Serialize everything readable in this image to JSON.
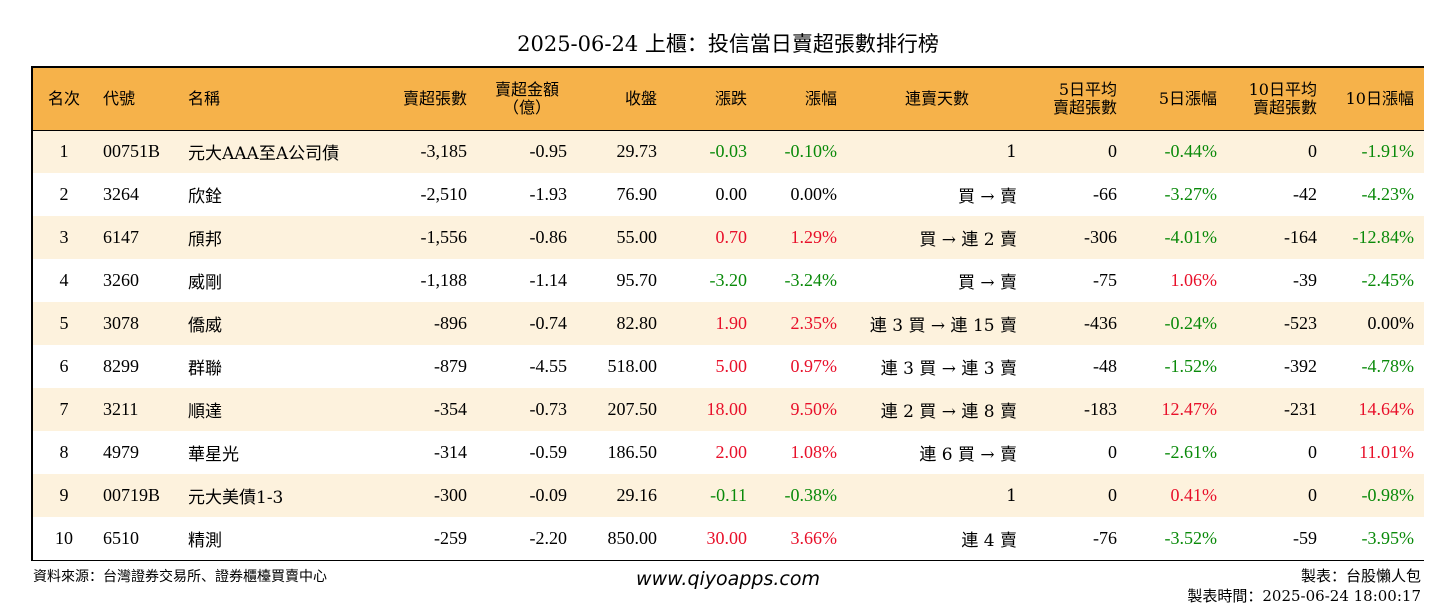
{
  "title": "2025-06-24 上櫃：投信當日賣超張數排行榜",
  "headers": {
    "rank": "名次",
    "code": "代號",
    "name": "名稱",
    "sell_shares": "賣超張數",
    "sell_amount_line1": "賣超金額",
    "sell_amount_line2": "（億）",
    "close": "收盤",
    "change": "漲跌",
    "change_pct": "漲幅",
    "streak": "連賣天數",
    "avg5_line1": "5日平均",
    "avg5_line2": "賣超張數",
    "chg5": "5日漲幅",
    "avg10_line1": "10日平均",
    "avg10_line2": "賣超張數",
    "chg10": "10日漲幅"
  },
  "rows": [
    {
      "rank": "1",
      "code": "00751B",
      "name": "元大AAA至A公司債",
      "sell_shares": "-3,185",
      "sell_amount": "-0.95",
      "close": "29.73",
      "change": "-0.03",
      "change_color": "green",
      "change_pct": "-0.10%",
      "streak": "1",
      "avg5": "0",
      "chg5": "-0.44%",
      "chg5_color": "green",
      "avg10": "0",
      "chg10": "-1.91%",
      "chg10_color": "green"
    },
    {
      "rank": "2",
      "code": "3264",
      "name": "欣銓",
      "sell_shares": "-2,510",
      "sell_amount": "-1.93",
      "close": "76.90",
      "change": "0.00",
      "change_color": "black",
      "change_pct": "0.00%",
      "streak": "買 → 賣",
      "avg5": "-66",
      "chg5": "-3.27%",
      "chg5_color": "green",
      "avg10": "-42",
      "chg10": "-4.23%",
      "chg10_color": "green"
    },
    {
      "rank": "3",
      "code": "6147",
      "name": "頎邦",
      "sell_shares": "-1,556",
      "sell_amount": "-0.86",
      "close": "55.00",
      "change": "0.70",
      "change_color": "red",
      "change_pct": "1.29%",
      "streak": "買 → 連 2 賣",
      "avg5": "-306",
      "chg5": "-4.01%",
      "chg5_color": "green",
      "avg10": "-164",
      "chg10": "-12.84%",
      "chg10_color": "green"
    },
    {
      "rank": "4",
      "code": "3260",
      "name": "威剛",
      "sell_shares": "-1,188",
      "sell_amount": "-1.14",
      "close": "95.70",
      "change": "-3.20",
      "change_color": "green",
      "change_pct": "-3.24%",
      "streak": "買 → 賣",
      "avg5": "-75",
      "chg5": "1.06%",
      "chg5_color": "red",
      "avg10": "-39",
      "chg10": "-2.45%",
      "chg10_color": "green"
    },
    {
      "rank": "5",
      "code": "3078",
      "name": "僑威",
      "sell_shares": "-896",
      "sell_amount": "-0.74",
      "close": "82.80",
      "change": "1.90",
      "change_color": "red",
      "change_pct": "2.35%",
      "streak": "連 3 買 → 連 15 賣",
      "avg5": "-436",
      "chg5": "-0.24%",
      "chg5_color": "green",
      "avg10": "-523",
      "chg10": "0.00%",
      "chg10_color": "black"
    },
    {
      "rank": "6",
      "code": "8299",
      "name": "群聯",
      "sell_shares": "-879",
      "sell_amount": "-4.55",
      "close": "518.00",
      "change": "5.00",
      "change_color": "red",
      "change_pct": "0.97%",
      "streak": "連 3 買 → 連 3 賣",
      "avg5": "-48",
      "chg5": "-1.52%",
      "chg5_color": "green",
      "avg10": "-392",
      "chg10": "-4.78%",
      "chg10_color": "green"
    },
    {
      "rank": "7",
      "code": "3211",
      "name": "順達",
      "sell_shares": "-354",
      "sell_amount": "-0.73",
      "close": "207.50",
      "change": "18.00",
      "change_color": "red",
      "change_pct": "9.50%",
      "streak": "連 2 買 → 連 8 賣",
      "avg5": "-183",
      "chg5": "12.47%",
      "chg5_color": "red",
      "avg10": "-231",
      "chg10": "14.64%",
      "chg10_color": "red"
    },
    {
      "rank": "8",
      "code": "4979",
      "name": "華星光",
      "sell_shares": "-314",
      "sell_amount": "-0.59",
      "close": "186.50",
      "change": "2.00",
      "change_color": "red",
      "change_pct": "1.08%",
      "streak": "連 6 買 → 賣",
      "avg5": "0",
      "chg5": "-2.61%",
      "chg5_color": "green",
      "avg10": "0",
      "chg10": "11.01%",
      "chg10_color": "red"
    },
    {
      "rank": "9",
      "code": "00719B",
      "name": "元大美債1-3",
      "sell_shares": "-300",
      "sell_amount": "-0.09",
      "close": "29.16",
      "change": "-0.11",
      "change_color": "green",
      "change_pct": "-0.38%",
      "streak": "1",
      "avg5": "0",
      "chg5": "0.41%",
      "chg5_color": "red",
      "avg10": "0",
      "chg10": "-0.98%",
      "chg10_color": "green"
    },
    {
      "rank": "10",
      "code": "6510",
      "name": "精測",
      "sell_shares": "-259",
      "sell_amount": "-2.20",
      "close": "850.00",
      "change": "30.00",
      "change_color": "red",
      "change_pct": "3.66%",
      "streak": "連 4 賣",
      "avg5": "-76",
      "chg5": "-3.52%",
      "chg5_color": "green",
      "avg10": "-59",
      "chg10": "-3.95%",
      "chg10_color": "green"
    }
  ],
  "colors": {
    "header_bg": "#f6b24a",
    "odd_row_bg": "#fdf2dd",
    "up": "#e8102a",
    "down": "#0a8a0a"
  },
  "footer": {
    "source": "資料來源：台灣證券交易所、證券櫃檯買賣中心",
    "site": "www.qiyoapps.com",
    "maker": "製表：台股懶人包",
    "time": "製表時間：2025-06-24 18:00:17"
  }
}
